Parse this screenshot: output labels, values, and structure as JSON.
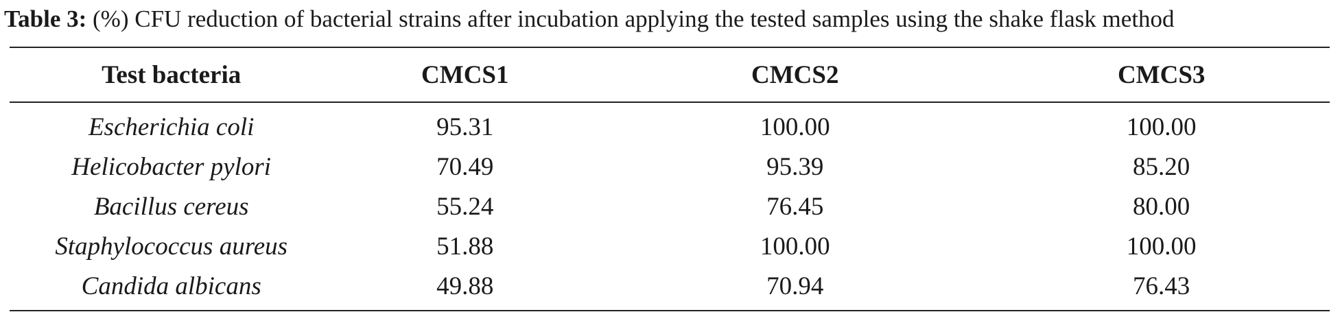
{
  "caption": {
    "label": "Table 3:",
    "text": " (%) CFU reduction of bacterial strains after incubation applying the tested samples using the shake flask method"
  },
  "table": {
    "headers": [
      "Test bacteria",
      "CMCS1",
      "CMCS2",
      "CMCS3"
    ],
    "rows": [
      [
        "Escherichia coli",
        "95.31",
        "100.00",
        "100.00"
      ],
      [
        "Helicobacter pylori",
        "70.49",
        "95.39",
        "85.20"
      ],
      [
        "Bacillus cereus",
        "55.24",
        "76.45",
        "80.00"
      ],
      [
        "Staphylococcus aureus",
        "51.88",
        "100.00",
        "100.00"
      ],
      [
        "Candida albicans",
        "49.88",
        "70.94",
        "76.43"
      ]
    ]
  }
}
